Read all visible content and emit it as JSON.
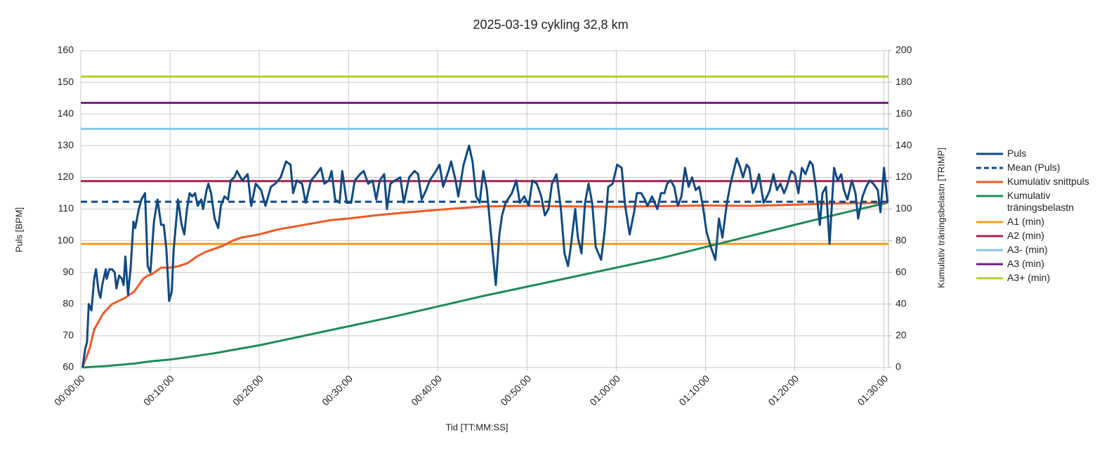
{
  "chart_data": {
    "type": "line",
    "title": "2025-03-19 cykling 32,8 km",
    "x_label": "Tid [TT:MM:SS]",
    "y_label": "Puls [BPM]",
    "y2_label": "Kumulativ träningsbelastn [TRIMP]",
    "xlim": [
      0,
      90.5
    ],
    "xticks": [
      {
        "value": 0,
        "label": "00:00:00"
      },
      {
        "value": 10,
        "label": "00:10:00"
      },
      {
        "value": 20,
        "label": "00:20:00"
      },
      {
        "value": 30,
        "label": "00:30:00"
      },
      {
        "value": 40,
        "label": "00:40:00"
      },
      {
        "value": 50,
        "label": "00:50:00"
      },
      {
        "value": 60,
        "label": "01:00:00"
      },
      {
        "value": 70,
        "label": "01:10:00"
      },
      {
        "value": 80,
        "label": "01:20:00"
      },
      {
        "value": 90,
        "label": "01:30:00"
      }
    ],
    "ylim": [
      60,
      160
    ],
    "yticks": [
      60,
      70,
      80,
      90,
      100,
      110,
      120,
      130,
      140,
      150,
      160
    ],
    "y2lim": [
      0,
      200
    ],
    "y2ticks": [
      0,
      20,
      40,
      60,
      80,
      100,
      120,
      140,
      160,
      180,
      200
    ],
    "grid": true,
    "legend": "right",
    "series": [
      {
        "name": "Puls",
        "color": "#0e4a84",
        "x": [
          0.2,
          0.5,
          0.7,
          0.9,
          1.2,
          1.5,
          1.7,
          2.0,
          2.2,
          2.4,
          2.8,
          2.9,
          3.2,
          3.5,
          3.8,
          4.0,
          4.3,
          4.6,
          4.8,
          5.0,
          5.3,
          5.6,
          5.9,
          6.1,
          6.5,
          6.8,
          7.2,
          7.5,
          7.8,
          8.2,
          8.6,
          9.0,
          9.3,
          9.6,
          9.9,
          10.2,
          10.4,
          10.9,
          11.3,
          11.6,
          11.9,
          12.2,
          12.5,
          12.8,
          13.1,
          13.5,
          13.7,
          14.1,
          14.3,
          14.6,
          15.0,
          15.4,
          15.7,
          16.1,
          16.5,
          16.8,
          17.2,
          17.5,
          18.1,
          18.7,
          19.1,
          19.6,
          20.2,
          20.7,
          21.3,
          21.8,
          22.4,
          23.0,
          23.5,
          23.8,
          24.2,
          24.8,
          25.2,
          25.8,
          26.4,
          26.9,
          27.3,
          27.8,
          28.1,
          28.5,
          29.0,
          29.3,
          29.8,
          30.3,
          30.7,
          31.3,
          31.7,
          32.2,
          32.7,
          33.1,
          33.5,
          34.0,
          34.3,
          34.7,
          35.2,
          35.8,
          36.2,
          36.8,
          37.4,
          37.8,
          38.2,
          38.7,
          39.1,
          39.8,
          40.2,
          40.6,
          41.2,
          41.5,
          42.0,
          42.3,
          42.9,
          43.5,
          43.9,
          44.3,
          44.7,
          45.1,
          45.5,
          45.9,
          46.5,
          46.9,
          47.2,
          47.6,
          48.3,
          48.8,
          49.2,
          49.7,
          50.2,
          50.6,
          51.1,
          51.6,
          52.0,
          52.4,
          52.8,
          53.3,
          53.8,
          54.2,
          54.6,
          54.9,
          55.4,
          55.7,
          56.1,
          56.5,
          56.9,
          57.3,
          57.7,
          58.3,
          58.7,
          59.1,
          59.6,
          60.1,
          60.6,
          61.0,
          61.5,
          62.0,
          62.3,
          62.8,
          63.2,
          63.5,
          64.0,
          64.6,
          65.0,
          65.4,
          65.7,
          66.1,
          66.5,
          66.9,
          67.3,
          67.7,
          68.1,
          68.5,
          68.9,
          69.3,
          69.7,
          70.1,
          70.6,
          71.1,
          71.5,
          71.9,
          72.4,
          72.8,
          73.5,
          73.9,
          74.2,
          74.6,
          74.9,
          75.3,
          75.6,
          76.0,
          76.5,
          76.9,
          77.2,
          77.6,
          78.0,
          78.4,
          78.8,
          79.1,
          79.6,
          80.0,
          80.4,
          80.8,
          81.2,
          81.7,
          82.0,
          82.4,
          82.8,
          83.1,
          83.5,
          83.9,
          84.4,
          84.8,
          85.2,
          85.5,
          85.9,
          86.4,
          86.8,
          87.1,
          87.6,
          88.0,
          88.4,
          88.8,
          89.3,
          89.6,
          90.0,
          90.4
        ],
        "values": [
          60,
          66,
          68,
          80,
          78,
          88,
          91,
          84,
          82,
          86,
          91,
          88,
          91,
          91,
          90,
          85,
          89,
          88,
          86,
          95,
          83,
          92,
          106,
          104,
          110,
          113,
          115,
          92,
          90,
          106,
          113,
          105,
          105,
          97,
          81,
          84,
          97,
          113,
          105,
          102,
          110,
          115,
          114,
          115,
          111,
          113,
          110,
          116,
          118,
          115,
          107,
          104,
          111,
          114,
          113,
          119,
          120,
          122,
          119,
          121,
          111,
          118,
          116,
          111,
          117,
          118,
          120,
          125,
          124,
          115,
          119,
          118,
          112,
          119,
          121,
          123,
          118,
          119,
          122,
          113,
          112,
          122,
          112,
          112,
          119,
          121,
          122,
          118,
          119,
          113,
          119,
          121,
          110,
          118,
          119,
          120,
          112,
          120,
          122,
          121,
          113,
          116,
          119,
          122,
          124,
          117,
          122,
          125,
          119,
          114,
          124,
          130,
          125,
          114,
          112,
          122,
          116,
          104,
          86,
          102,
          108,
          112,
          115,
          119,
          112,
          114,
          111,
          119,
          118,
          114,
          108,
          110,
          118,
          121,
          110,
          96,
          92,
          98,
          110,
          101,
          96,
          112,
          118,
          112,
          98,
          94,
          103,
          117,
          118,
          124,
          123,
          111,
          102,
          109,
          115,
          115,
          113,
          111,
          114,
          110,
          115,
          115,
          118,
          119,
          117,
          111,
          114,
          123,
          117,
          120,
          116,
          117,
          111,
          103,
          98,
          94,
          107,
          101,
          112,
          118,
          126,
          123,
          120,
          124,
          123,
          115,
          117,
          121,
          112,
          114,
          116,
          121,
          116,
          118,
          115,
          117,
          122,
          121,
          115,
          123,
          121,
          125,
          124,
          116,
          105,
          115,
          117,
          99,
          123,
          119,
          121,
          116,
          113,
          119,
          115,
          107,
          114,
          117,
          119,
          118,
          116,
          109,
          123,
          112
        ]
      },
      {
        "name": "Mean (Puls)",
        "color": "#0e4a84",
        "dash": true,
        "x": [
          0,
          90.5
        ],
        "values": [
          112.3,
          112.3
        ]
      },
      {
        "name": "Kumulativ snittpuls",
        "color": "#ee5a24",
        "x": [
          0.2,
          1,
          1.5,
          2.5,
          3.5,
          5,
          6,
          7,
          7.5,
          8,
          9,
          10,
          11,
          12,
          13,
          14,
          15,
          16,
          17,
          18,
          20,
          22,
          24,
          26,
          28,
          30,
          33,
          36,
          39,
          42,
          45,
          50,
          55,
          60,
          65,
          70,
          75,
          80,
          85,
          90.4
        ],
        "values": [
          60,
          66,
          72,
          77,
          80,
          82,
          84,
          88,
          89,
          89.5,
          91.5,
          91.5,
          92,
          93,
          95,
          96.5,
          97.5,
          98.5,
          100,
          101,
          102,
          103.5,
          104.5,
          105.5,
          106.5,
          107,
          108,
          108.8,
          109.5,
          110.2,
          110.8,
          111,
          110.8,
          110.7,
          110.9,
          111.1,
          111,
          111.4,
          111.8,
          112
        ]
      },
      {
        "name": "Kumulativ träningsbelastn",
        "color": "#1e8c5a",
        "axis": "y2",
        "x": [
          0.2,
          3,
          6,
          8,
          10,
          12,
          15,
          18,
          20,
          25,
          30,
          35,
          40,
          45,
          50,
          55,
          60,
          65,
          70,
          75,
          80,
          85,
          90.4
        ],
        "values": [
          0,
          1,
          2.5,
          4,
          5,
          6.5,
          9,
          12,
          14,
          20,
          26,
          32,
          38.5,
          45,
          51,
          57,
          63,
          69,
          76,
          83,
          90,
          97,
          104
        ]
      },
      {
        "name": "A1 (min)",
        "color": "#f39c1b",
        "x": [
          0,
          90.5
        ],
        "values": [
          99,
          99
        ]
      },
      {
        "name": "A2 (min)",
        "color": "#a4244d",
        "x": [
          0,
          90.5
        ],
        "values": [
          118.8,
          118.8
        ]
      },
      {
        "name": "A3- (min)",
        "color": "#86c7e8",
        "x": [
          0,
          90.5
        ],
        "values": [
          135.3,
          135.3
        ]
      },
      {
        "name": "A3 (min)",
        "color": "#6f1f7f",
        "x": [
          0,
          90.5
        ],
        "values": [
          143.5,
          143.5
        ]
      },
      {
        "name": "A3+ (min)",
        "color": "#b5cc2a",
        "x": [
          0,
          90.5
        ],
        "values": [
          151.8,
          151.8
        ]
      }
    ]
  }
}
